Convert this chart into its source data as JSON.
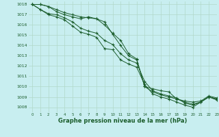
{
  "bg_color": "#c8eef0",
  "grid_color": "#b0d8c8",
  "line_color": "#1a5c2a",
  "ylabel_values": [
    1008,
    1009,
    1010,
    1011,
    1012,
    1013,
    1014,
    1015,
    1016,
    1017,
    1018
  ],
  "xlabel_values": [
    0,
    1,
    2,
    3,
    4,
    5,
    6,
    7,
    8,
    9,
    10,
    11,
    12,
    13,
    14,
    15,
    16,
    17,
    18,
    19,
    20,
    21,
    22,
    23
  ],
  "xlim": [
    -0.5,
    23
  ],
  "ylim": [
    1007.5,
    1018.3
  ],
  "xlabel": "Graphe pression niveau de la mer (hPa)",
  "series": [
    [
      1018.0,
      1018.0,
      1017.8,
      1017.5,
      1017.2,
      1017.0,
      1016.8,
      1016.7,
      1016.6,
      1016.3,
      1015.1,
      1014.0,
      1013.0,
      1012.6,
      1010.0,
      1009.5,
      1009.2,
      1009.0,
      1008.8,
      1008.5,
      1008.3,
      1008.5,
      1009.0,
      1008.8
    ],
    [
      1018.0,
      1018.0,
      1017.8,
      1017.3,
      1017.0,
      1016.8,
      1016.6,
      1016.8,
      1016.6,
      1016.0,
      1015.2,
      1014.5,
      1013.2,
      1012.7,
      1010.0,
      1009.8,
      1009.6,
      1009.5,
      1008.8,
      1008.6,
      1008.5,
      1008.6,
      1009.1,
      1008.9
    ],
    [
      1018.0,
      1017.5,
      1017.1,
      1017.0,
      1016.7,
      1016.3,
      1015.7,
      1015.4,
      1015.2,
      1014.5,
      1014.1,
      1013.2,
      1012.6,
      1012.3,
      1010.5,
      1009.6,
      1009.3,
      1009.1,
      1008.9,
      1008.4,
      1008.2,
      1008.5,
      1009.0,
      1008.8
    ],
    [
      1018.0,
      1017.5,
      1017.0,
      1016.8,
      1016.5,
      1015.9,
      1015.3,
      1015.1,
      1014.8,
      1013.7,
      1013.6,
      1012.6,
      1012.2,
      1011.9,
      1010.2,
      1009.3,
      1009.0,
      1008.8,
      1008.5,
      1008.2,
      1008.0,
      1008.5,
      1009.0,
      1008.7
    ]
  ]
}
